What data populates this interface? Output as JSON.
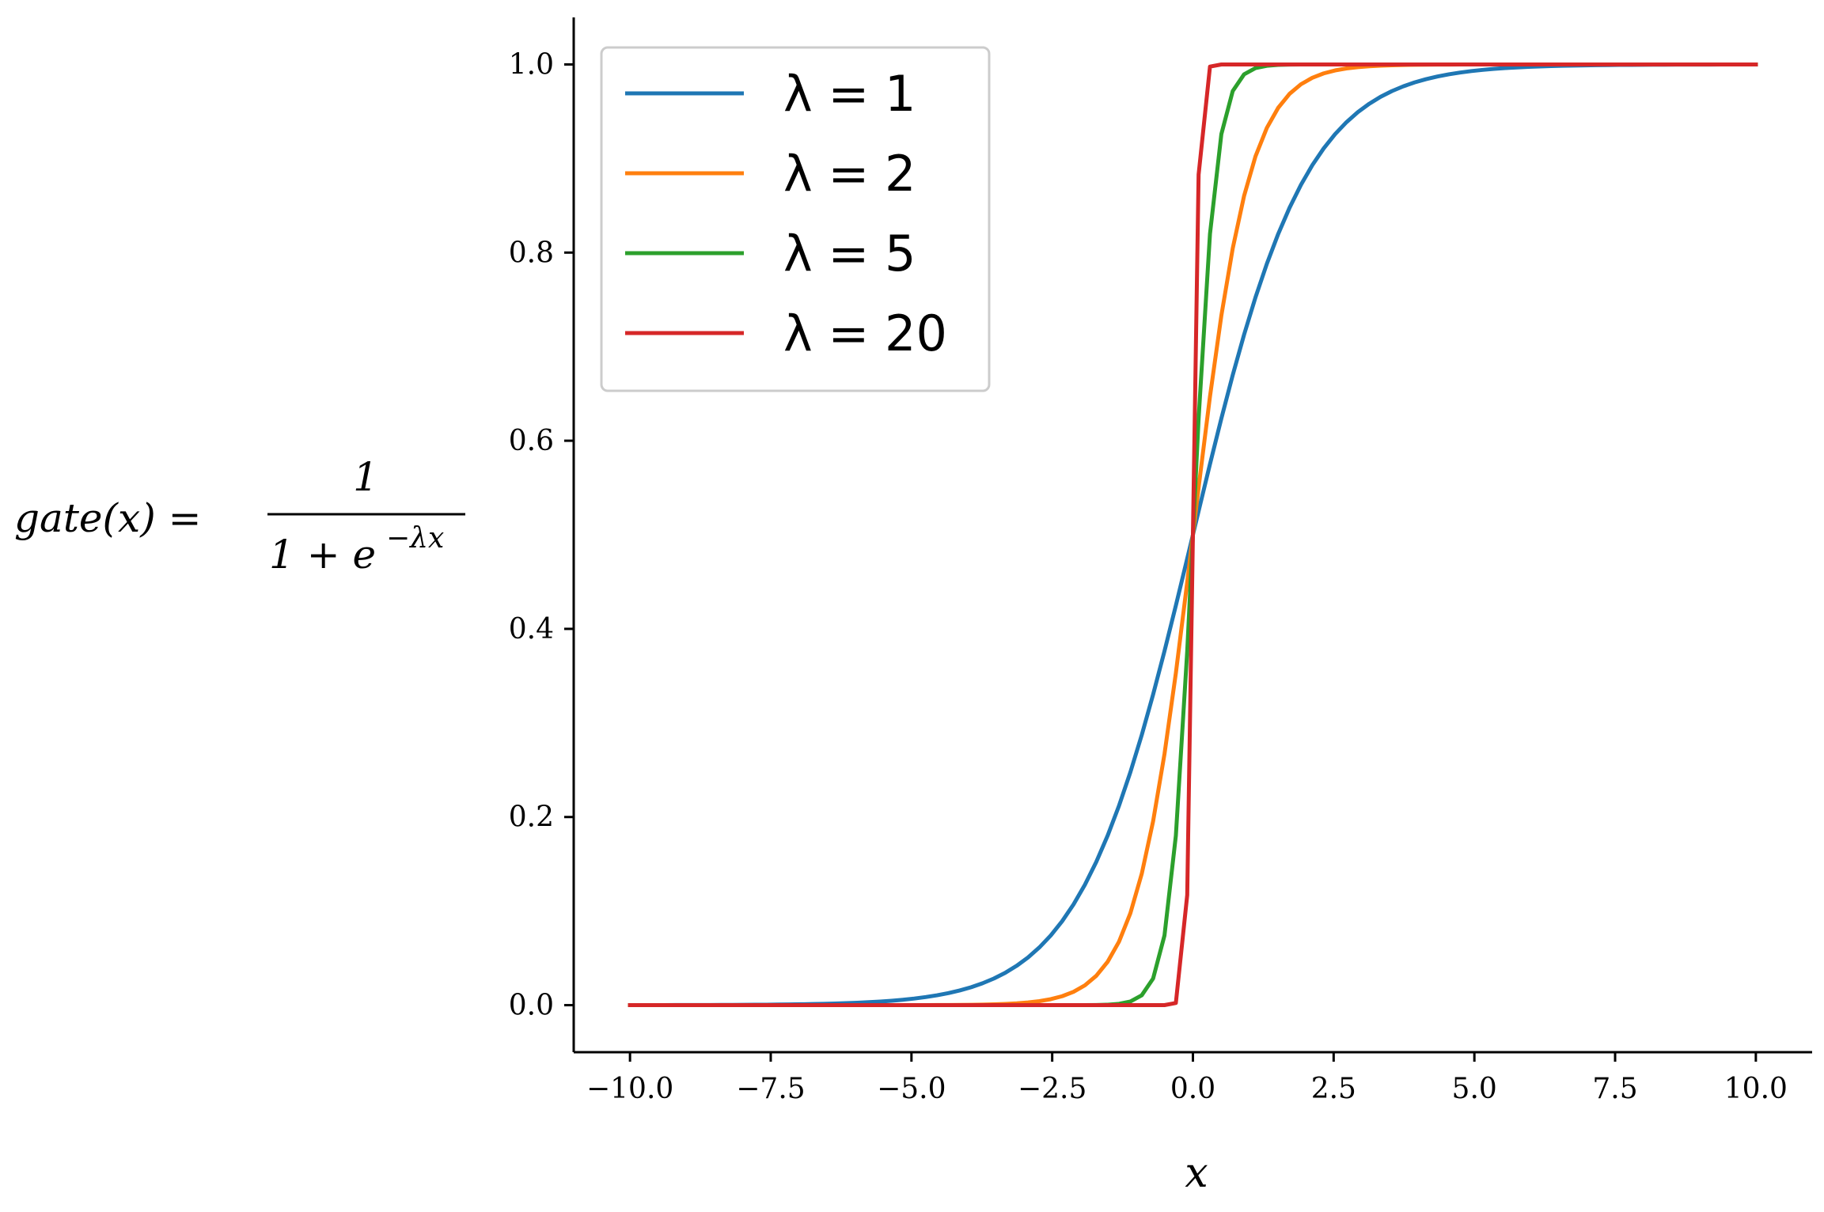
{
  "chart_data": {
    "type": "line",
    "title": "",
    "xlabel": "x",
    "ylabel": {
      "lhs": "gate(x) =",
      "numerator": "1",
      "denominator_base": "1 + e",
      "denominator_exponent": "−λx"
    },
    "xlim": [
      -11,
      11
    ],
    "ylim": [
      -0.05,
      1.05
    ],
    "xticks": [
      -10.0,
      -7.5,
      -5.0,
      -2.5,
      0.0,
      2.5,
      5.0,
      7.5,
      10.0
    ],
    "xtick_labels": [
      "−10.0",
      "−7.5",
      "−5.0",
      "−2.5",
      "0.0",
      "2.5",
      "5.0",
      "7.5",
      "10.0"
    ],
    "yticks": [
      0.0,
      0.2,
      0.4,
      0.6,
      0.8,
      1.0
    ],
    "ytick_labels": [
      "0.0",
      "0.2",
      "0.4",
      "0.6",
      "0.8",
      "1.0"
    ],
    "x_range": [
      -10,
      10
    ],
    "function": "1 / (1 + exp(-lambda * x))",
    "series": [
      {
        "name": "λ = 1",
        "lambda": 1,
        "color": "#1f77b4"
      },
      {
        "name": "λ = 2",
        "lambda": 2,
        "color": "#ff7f0e"
      },
      {
        "name": "λ = 5",
        "lambda": 5,
        "color": "#2ca02c"
      },
      {
        "name": "λ = 20",
        "lambda": 20,
        "color": "#d62728"
      }
    ],
    "legend_position": "top-left",
    "grid": false
  }
}
